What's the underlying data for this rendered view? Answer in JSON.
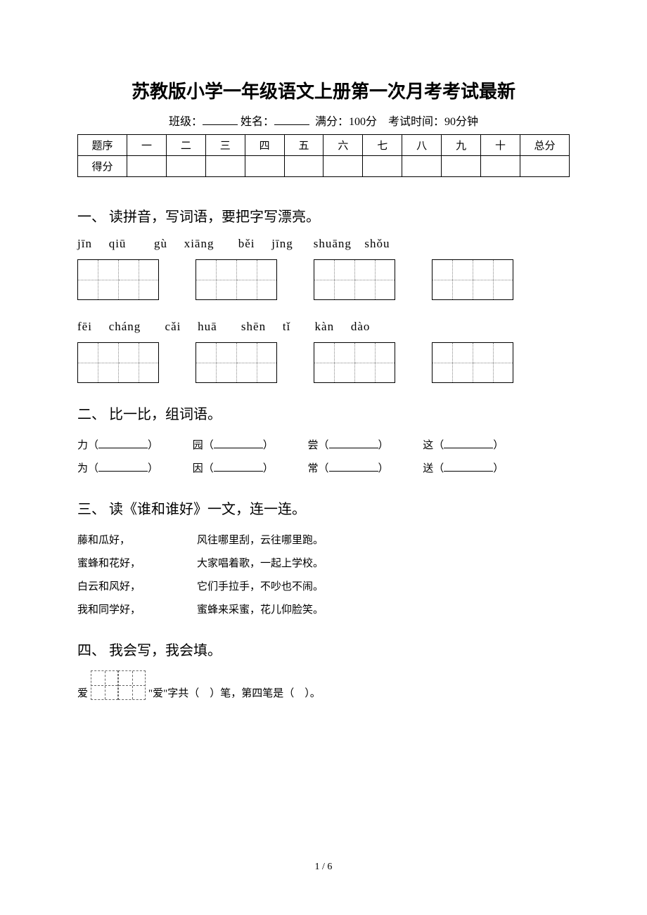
{
  "title": "苏教版小学一年级语文上册第一次月考考试最新",
  "subtitle": {
    "class_label": "班级：",
    "name_label": "姓名：",
    "full_score": "满分：100分",
    "exam_time": "考试时间：90分钟"
  },
  "score_table": {
    "header_label": "题序",
    "score_label": "得分",
    "cols": [
      "一",
      "二",
      "三",
      "四",
      "五",
      "六",
      "七",
      "八",
      "九",
      "十"
    ],
    "total_label": "总分"
  },
  "section1": {
    "heading": "一、 读拼音，写词语，要把字写漂亮。",
    "row1": {
      "p1a": "jīn",
      "p1b": "qiū",
      "p2a": "gù",
      "p2b": "xiāng",
      "p3a": "běi",
      "p3b": "jīng",
      "p4a": "shuāng",
      "p4b": "shǒu"
    },
    "row2": {
      "p1a": "fēi",
      "p1b": "cháng",
      "p2a": "cǎi",
      "p2b": "huā",
      "p3a": "shēn",
      "p3b": "tǐ",
      "p4a": "kàn",
      "p4b": "dào"
    }
  },
  "section2": {
    "heading": "二、 比一比，组词语。",
    "pairs": [
      {
        "a": "力",
        "b": "为"
      },
      {
        "a": "园",
        "b": "因"
      },
      {
        "a": "尝",
        "b": "常"
      },
      {
        "a": "这",
        "b": "送"
      }
    ]
  },
  "section3": {
    "heading": "三、 读《谁和谁好》一文，连一连。",
    "rows": [
      {
        "l": "藤和瓜好，",
        "r": "风往哪里刮，云往哪里跑。"
      },
      {
        "l": "蜜蜂和花好，",
        "r": "大家唱着歌，一起上学校。"
      },
      {
        "l": "白云和风好，",
        "r": "它们手拉手，不吵也不闹。"
      },
      {
        "l": "我和同学好，",
        "r": "蜜蜂来采蜜，花儿仰脸笑。"
      }
    ]
  },
  "section4": {
    "heading": "四、 我会写，我会填。",
    "line1_prefix": "爱",
    "line1_mid": "\"爱\"字共（",
    "line1_mid2": "）笔，第四笔是（",
    "line1_end": "）。"
  },
  "page_num": "1 / 6"
}
